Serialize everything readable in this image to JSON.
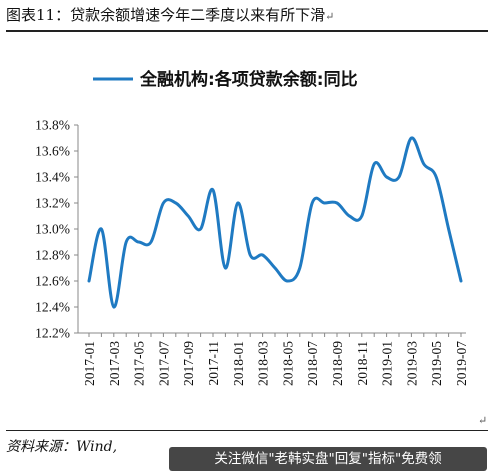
{
  "figure": {
    "title": "图表11：贷款余额增速今年二季度以来有所下滑",
    "title_mark": "↵",
    "source": "资料来源：Wind,",
    "return_mark": "↵"
  },
  "watermark": {
    "text": "关注微信\"老韩实盘\"回复\"指标\"免费领"
  },
  "chart_data": {
    "type": "line",
    "title": "",
    "xlabel": "",
    "ylabel": "",
    "legend": {
      "position": "top-center"
    },
    "grid": false,
    "ylim": [
      12.2,
      13.8
    ],
    "y_ticks": [
      "12.2%",
      "12.4%",
      "12.6%",
      "12.8%",
      "13.0%",
      "13.2%",
      "13.4%",
      "13.6%",
      "13.8%"
    ],
    "x_tick_labels": [
      "2017-01",
      "2017-03",
      "2017-05",
      "2017-07",
      "2017-09",
      "2017-11",
      "2018-01",
      "2018-03",
      "2018-05",
      "2018-07",
      "2018-09",
      "2018-11",
      "2019-01",
      "2019-03",
      "2019-05",
      "2019-07"
    ],
    "x": [
      "2017-01",
      "2017-02",
      "2017-03",
      "2017-04",
      "2017-05",
      "2017-06",
      "2017-07",
      "2017-08",
      "2017-09",
      "2017-10",
      "2017-11",
      "2017-12",
      "2018-01",
      "2018-02",
      "2018-03",
      "2018-04",
      "2018-05",
      "2018-06",
      "2018-07",
      "2018-08",
      "2018-09",
      "2018-10",
      "2018-11",
      "2018-12",
      "2019-01",
      "2019-02",
      "2019-03",
      "2019-04",
      "2019-05",
      "2019-06",
      "2019-07"
    ],
    "series": [
      {
        "name": "全融机构:各项贷款余额:同比",
        "color": "#1f7ac2",
        "values": [
          12.6,
          13.0,
          12.4,
          12.9,
          12.9,
          12.9,
          13.2,
          13.2,
          13.1,
          13.0,
          13.3,
          12.7,
          13.2,
          12.8,
          12.8,
          12.7,
          12.6,
          12.7,
          13.2,
          13.2,
          13.2,
          13.1,
          13.1,
          13.5,
          13.4,
          13.4,
          13.7,
          13.5,
          13.4,
          13.0,
          12.6
        ]
      }
    ]
  }
}
